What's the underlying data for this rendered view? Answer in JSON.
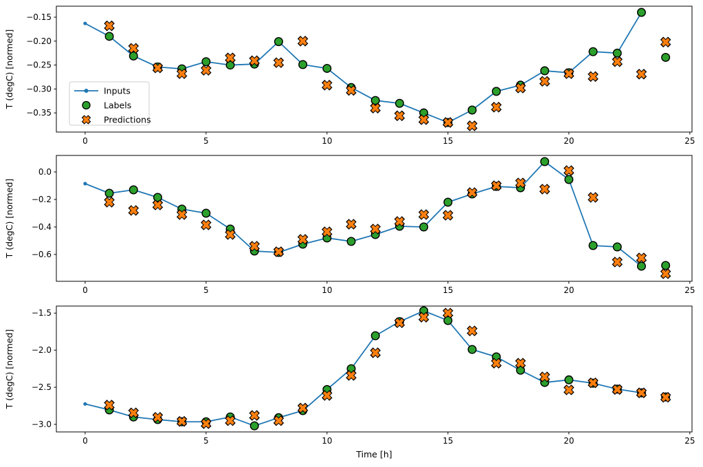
{
  "figure": {
    "background": "#ffffff",
    "xlabel": "Time [h]",
    "ylabel": "T (degC) [normed]",
    "legend": {
      "entries": [
        {
          "label": "Inputs",
          "kind": "line-dot",
          "color": "#1f77b4",
          "edge": "#1f77b4"
        },
        {
          "label": "Labels",
          "kind": "circle",
          "color": "#2ca02c",
          "edge": "#000000"
        },
        {
          "label": "Predictions",
          "kind": "x-marker",
          "color": "#ff7f0e",
          "edge": "#000000"
        }
      ]
    }
  },
  "chart_data": [
    {
      "type": "line",
      "title": "",
      "ylabel": "T (degC) [normed]",
      "xlabel": "",
      "xlim": [
        -1.19,
        25.09
      ],
      "ylim": [
        -0.39,
        -0.127
      ],
      "xticks": [
        0,
        5,
        10,
        15,
        20,
        25
      ],
      "xtick_labels": [
        "0",
        "5",
        "10",
        "15",
        "20",
        "25"
      ],
      "yticks": [
        -0.15,
        -0.2,
        -0.25,
        -0.3,
        -0.35
      ],
      "ytick_labels": [
        "−0.15",
        "−0.20",
        "−0.25",
        "−0.30",
        "−0.35"
      ],
      "legend": true,
      "series": [
        {
          "name": "Inputs",
          "kind": "line-dot",
          "color": "#1f77b4",
          "x": [
            0,
            1,
            2,
            3,
            4,
            5,
            6,
            7,
            8,
            9,
            10,
            11,
            12,
            13,
            14,
            15,
            16,
            17,
            18,
            19,
            20,
            21,
            22,
            23
          ],
          "y": [
            -0.163,
            -0.19,
            -0.231,
            -0.254,
            -0.258,
            -0.243,
            -0.25,
            -0.248,
            -0.201,
            -0.249,
            -0.257,
            -0.297,
            -0.324,
            -0.33,
            -0.35,
            -0.37,
            -0.344,
            -0.305,
            -0.292,
            -0.262,
            -0.266,
            -0.222,
            -0.225,
            -0.14
          ]
        },
        {
          "name": "Labels",
          "kind": "circle",
          "color": "#2ca02c",
          "edge": "#000000",
          "x": [
            1,
            2,
            3,
            4,
            5,
            6,
            7,
            8,
            9,
            10,
            11,
            12,
            13,
            14,
            15,
            16,
            17,
            18,
            19,
            20,
            21,
            22,
            23,
            24
          ],
          "y": [
            -0.19,
            -0.231,
            -0.254,
            -0.258,
            -0.243,
            -0.25,
            -0.248,
            -0.201,
            -0.249,
            -0.257,
            -0.297,
            -0.324,
            -0.33,
            -0.35,
            -0.37,
            -0.344,
            -0.305,
            -0.292,
            -0.262,
            -0.266,
            -0.222,
            -0.225,
            -0.14,
            -0.234
          ]
        },
        {
          "name": "Predictions",
          "kind": "x-marker",
          "color": "#ff7f0e",
          "edge": "#000000",
          "x": [
            1,
            2,
            3,
            4,
            5,
            6,
            7,
            8,
            9,
            10,
            11,
            12,
            13,
            14,
            15,
            16,
            17,
            18,
            19,
            20,
            21,
            22,
            23,
            24
          ],
          "y": [
            -0.168,
            -0.215,
            -0.256,
            -0.268,
            -0.261,
            -0.235,
            -0.241,
            -0.245,
            -0.2,
            -0.292,
            -0.303,
            -0.34,
            -0.356,
            -0.364,
            -0.37,
            -0.377,
            -0.338,
            -0.298,
            -0.284,
            -0.268,
            -0.274,
            -0.243,
            -0.269,
            -0.202
          ]
        }
      ]
    },
    {
      "type": "line",
      "title": "",
      "ylabel": "T (degC) [normed]",
      "xlabel": "",
      "xlim": [
        -1.19,
        25.09
      ],
      "ylim": [
        -0.795,
        0.12
      ],
      "xticks": [
        0,
        5,
        10,
        15,
        20,
        25
      ],
      "xtick_labels": [
        "0",
        "5",
        "10",
        "15",
        "20",
        "25"
      ],
      "yticks": [
        0.0,
        -0.2,
        -0.4,
        -0.6
      ],
      "ytick_labels": [
        "0.0",
        "−0.2",
        "−0.4",
        "−0.6"
      ],
      "legend": false,
      "series": [
        {
          "name": "Inputs",
          "kind": "line-dot",
          "color": "#1f77b4",
          "x": [
            0,
            1,
            2,
            3,
            4,
            5,
            6,
            7,
            8,
            9,
            10,
            11,
            12,
            13,
            14,
            15,
            16,
            17,
            18,
            19,
            20,
            21,
            22,
            23
          ],
          "y": [
            -0.085,
            -0.155,
            -0.13,
            -0.185,
            -0.27,
            -0.3,
            -0.415,
            -0.575,
            -0.585,
            -0.525,
            -0.48,
            -0.505,
            -0.455,
            -0.395,
            -0.4,
            -0.22,
            -0.16,
            -0.105,
            -0.115,
            0.075,
            -0.055,
            -0.535,
            -0.545,
            -0.685
          ]
        },
        {
          "name": "Labels",
          "kind": "circle",
          "color": "#2ca02c",
          "edge": "#000000",
          "x": [
            1,
            2,
            3,
            4,
            5,
            6,
            7,
            8,
            9,
            10,
            11,
            12,
            13,
            14,
            15,
            16,
            17,
            18,
            19,
            20,
            21,
            22,
            23,
            24
          ],
          "y": [
            -0.155,
            -0.13,
            -0.185,
            -0.27,
            -0.3,
            -0.415,
            -0.575,
            -0.585,
            -0.525,
            -0.48,
            -0.505,
            -0.455,
            -0.395,
            -0.4,
            -0.22,
            -0.16,
            -0.105,
            -0.115,
            0.075,
            -0.055,
            -0.535,
            -0.545,
            -0.685,
            -0.68
          ]
        },
        {
          "name": "Predictions",
          "kind": "x-marker",
          "color": "#ff7f0e",
          "edge": "#000000",
          "x": [
            1,
            2,
            3,
            4,
            5,
            6,
            7,
            8,
            9,
            10,
            11,
            12,
            13,
            14,
            15,
            16,
            17,
            18,
            19,
            20,
            21,
            22,
            23,
            24
          ],
          "y": [
            -0.22,
            -0.28,
            -0.24,
            -0.31,
            -0.385,
            -0.455,
            -0.54,
            -0.58,
            -0.49,
            -0.435,
            -0.38,
            -0.415,
            -0.36,
            -0.31,
            -0.315,
            -0.15,
            -0.1,
            -0.08,
            -0.125,
            0.01,
            -0.185,
            -0.655,
            -0.625,
            -0.74
          ]
        }
      ]
    },
    {
      "type": "line",
      "title": "",
      "ylabel": "T (degC) [normed]",
      "xlabel": "Time [h]",
      "xlim": [
        -1.19,
        25.09
      ],
      "ylim": [
        -3.102,
        -1.405
      ],
      "xticks": [
        0,
        5,
        10,
        15,
        20,
        25
      ],
      "xtick_labels": [
        "0",
        "5",
        "10",
        "15",
        "20",
        "25"
      ],
      "yticks": [
        -1.5,
        -2.0,
        -2.5,
        -3.0
      ],
      "ytick_labels": [
        "−1.5",
        "−2.0",
        "−2.5",
        "−3.0"
      ],
      "legend": false,
      "series": [
        {
          "name": "Inputs",
          "kind": "line-dot",
          "color": "#1f77b4",
          "x": [
            0,
            1,
            2,
            3,
            4,
            5,
            6,
            7,
            8,
            9,
            10,
            11,
            12,
            13,
            14,
            15,
            16,
            17,
            18,
            19,
            20,
            21,
            22,
            23
          ],
          "y": [
            -2.725,
            -2.805,
            -2.9,
            -2.935,
            -2.965,
            -2.965,
            -2.9,
            -3.02,
            -2.91,
            -2.815,
            -2.53,
            -2.25,
            -1.805,
            -1.615,
            -1.47,
            -1.6,
            -1.99,
            -2.09,
            -2.27,
            -2.435,
            -2.4,
            -2.445,
            -2.525,
            -2.575
          ]
        },
        {
          "name": "Labels",
          "kind": "circle",
          "color": "#2ca02c",
          "edge": "#000000",
          "x": [
            1,
            2,
            3,
            4,
            5,
            6,
            7,
            8,
            9,
            10,
            11,
            12,
            13,
            14,
            15,
            16,
            17,
            18,
            19,
            20,
            21,
            22,
            23,
            24
          ],
          "y": [
            -2.805,
            -2.9,
            -2.935,
            -2.965,
            -2.965,
            -2.9,
            -3.02,
            -2.91,
            -2.815,
            -2.53,
            -2.25,
            -1.805,
            -1.615,
            -1.47,
            -1.6,
            -1.99,
            -2.09,
            -2.27,
            -2.435,
            -2.4,
            -2.445,
            -2.525,
            -2.575,
            -2.63
          ]
        },
        {
          "name": "Predictions",
          "kind": "x-marker",
          "color": "#ff7f0e",
          "edge": "#000000",
          "x": [
            1,
            2,
            3,
            4,
            5,
            6,
            7,
            8,
            9,
            10,
            11,
            12,
            13,
            14,
            15,
            16,
            17,
            18,
            19,
            20,
            21,
            22,
            23,
            24
          ],
          "y": [
            -2.74,
            -2.845,
            -2.905,
            -2.96,
            -2.99,
            -2.95,
            -2.88,
            -2.95,
            -2.78,
            -2.61,
            -2.34,
            -2.035,
            -1.63,
            -1.555,
            -1.5,
            -1.74,
            -2.175,
            -2.175,
            -2.36,
            -2.535,
            -2.44,
            -2.53,
            -2.575,
            -2.635
          ]
        }
      ]
    }
  ]
}
